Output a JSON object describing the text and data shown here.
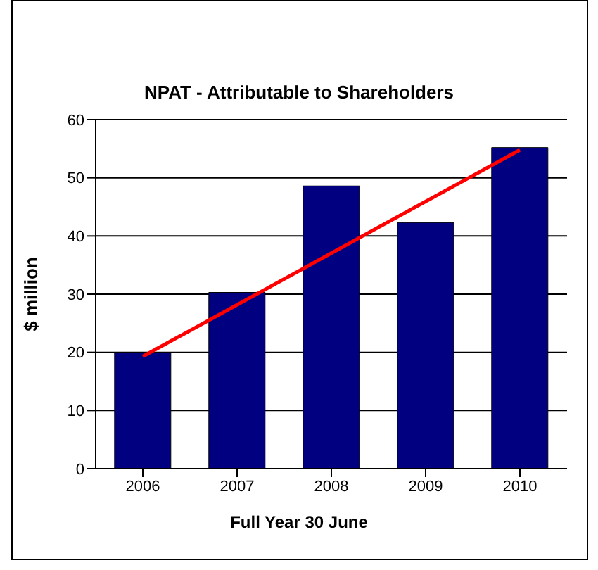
{
  "chart_data": {
    "type": "bar",
    "title": "NPAT - Attributable to Shareholders",
    "xlabel": "Full Year 30 June",
    "ylabel": "$ million",
    "categories": [
      "2006",
      "2007",
      "2008",
      "2009",
      "2010"
    ],
    "series": [
      {
        "color": "#000080",
        "values": [
          19.9,
          30.3,
          48.6,
          42.3,
          55.2
        ]
      },
      {
        "type": "line",
        "color": "#ff0000",
        "values": [
          19.3,
          null,
          null,
          null,
          54.8
        ]
      }
    ],
    "ylim": [
      0,
      60
    ],
    "yticks": [
      0,
      10,
      20,
      30,
      40,
      50,
      60
    ],
    "grid": "y",
    "legend": false
  }
}
